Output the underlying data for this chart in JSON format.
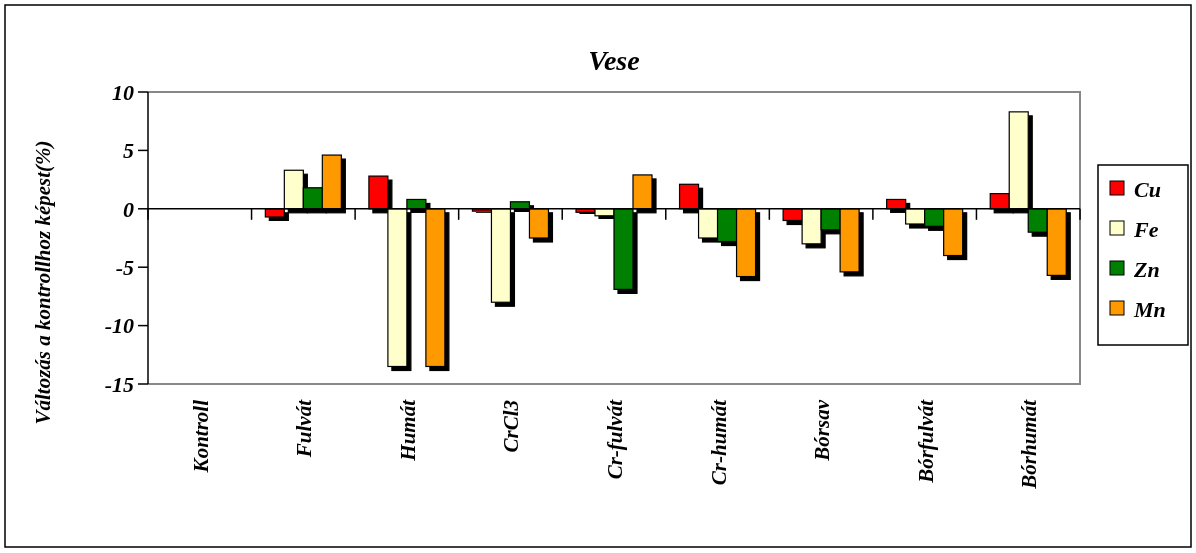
{
  "chart_data": {
    "type": "bar",
    "title": "Vese",
    "ylabel": "Változás a kontrollhoz képest(%)",
    "categories": [
      "Kontroll",
      "Fulvát",
      "Humát",
      "CrCl3",
      "Cr-fulvát",
      "Cr-humát",
      "Bórsav",
      "Bórfulvát",
      "Bórhumát"
    ],
    "series": [
      {
        "name": "Cu",
        "color": "#ff0000",
        "values": [
          0,
          -0.7,
          2.8,
          -0.2,
          -0.3,
          2.1,
          -1.0,
          0.8,
          1.3
        ]
      },
      {
        "name": "Fe",
        "color": "#ffffcc",
        "values": [
          0,
          3.3,
          -13.5,
          -8.0,
          -0.6,
          -2.5,
          -3.0,
          -1.3,
          8.3
        ]
      },
      {
        "name": "Zn",
        "color": "#008000",
        "values": [
          0,
          1.8,
          0.8,
          0.6,
          -6.9,
          -2.8,
          -1.8,
          -1.5,
          -2.0
        ]
      },
      {
        "name": "Mn",
        "color": "#ff9900",
        "values": [
          0,
          4.6,
          -13.5,
          -2.5,
          2.9,
          -5.8,
          -5.4,
          -4.0,
          -5.7
        ]
      }
    ],
    "ylim": [
      -15,
      10
    ],
    "yticks": [
      -15,
      -10,
      -5,
      0,
      5,
      10
    ],
    "legend": "right"
  }
}
